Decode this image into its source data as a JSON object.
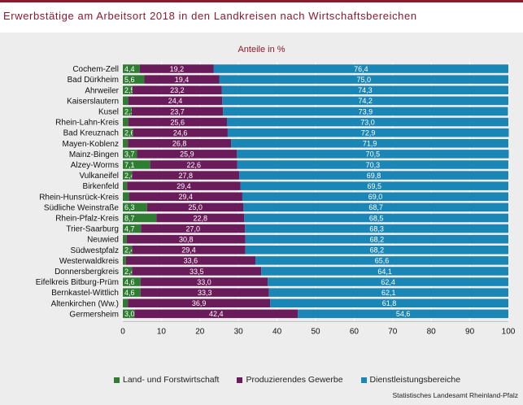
{
  "header": {
    "title": "Erwerbstätige am Arbeitsort 2018 in den Landkreisen nach Wirtschaftsbereichen"
  },
  "colors": {
    "accent": "#8b1a2e",
    "agriculture": "#2e7d32",
    "industry": "#6a1b5a",
    "services": "#1a86b5"
  },
  "source": "Statistisches Landesamt Rheinland-Pfalz",
  "chart_data": {
    "type": "bar",
    "orientation": "horizontal",
    "stacked": true,
    "title": "Erwerbstätige am Arbeitsort 2018 in den Landkreisen nach Wirtschaftsbereichen",
    "subtitle": "Anteile in %",
    "xlim": [
      0,
      100
    ],
    "xticks": [
      0,
      10,
      20,
      30,
      40,
      50,
      60,
      70,
      80,
      90,
      100
    ],
    "grid": true,
    "legend_position": "bottom",
    "categories": [
      "Cochem-Zell",
      "Bad Dürkheim",
      "Ahrweiler",
      "Kaiserslautern",
      "Kusel",
      "Rhein-Lahn-Kreis",
      "Bad Kreuznach",
      "Mayen-Koblenz",
      "Mainz-Bingen",
      "Alzey-Worms",
      "Vulkaneifel",
      "Birkenfeld",
      "Rhein-Hunsrück-Kreis",
      "Südliche Weinstraße",
      "Rhein-Pfalz-Kreis",
      "Trier-Saarburg",
      "Neuwied",
      "Südwestpfalz",
      "Westerwaldkreis",
      "Donnersbergkreis",
      "Eifelkreis Bitburg-Prüm",
      "Bernkastel-Wittlich",
      "Altenkirchen (Ww.)",
      "Germersheim"
    ],
    "series": [
      {
        "name": "Land- und Forstwirtschaft",
        "values": [
          4.4,
          5.6,
          2.5,
          1.4,
          2.3,
          1.4,
          2.6,
          1.3,
          3.7,
          7.1,
          2.4,
          1.1,
          1.6,
          6.3,
          8.7,
          4.7,
          1.0,
          2.4,
          0.8,
          2.4,
          4.6,
          4.6,
          1.3,
          3.0
        ],
        "labels": [
          "4,4",
          "5,6",
          "2,5",
          "",
          "2,3",
          "",
          "2,6",
          "",
          "3,7",
          "7,1",
          "2,4",
          "",
          "",
          "6,3",
          "8,7",
          "4,7",
          "",
          "2,4",
          "",
          "2,4",
          "4,6",
          "4,6",
          "",
          "3,0"
        ]
      },
      {
        "name": "Produzierendes Gewerbe",
        "values": [
          19.2,
          19.4,
          23.2,
          24.4,
          23.7,
          25.6,
          24.6,
          26.8,
          25.9,
          22.6,
          27.8,
          29.4,
          29.4,
          25.0,
          22.8,
          27.0,
          30.8,
          29.4,
          33.6,
          33.5,
          33.0,
          33.3,
          36.9,
          42.4
        ],
        "labels": [
          "19,2",
          "19,4",
          "23,2",
          "24,4",
          "23,7",
          "25,6",
          "24,6",
          "26,8",
          "25,9",
          "22,6",
          "27,8",
          "29,4",
          "29,4",
          "25,0",
          "22,8",
          "27,0",
          "30,8",
          "29,4",
          "33,6",
          "33,5",
          "33,0",
          "33,3",
          "36,9",
          "42,4"
        ]
      },
      {
        "name": "Dienstleistungsbereiche",
        "values": [
          76.4,
          75.0,
          74.3,
          74.2,
          73.9,
          73.0,
          72.9,
          71.9,
          70.5,
          70.3,
          69.8,
          69.5,
          69.0,
          68.7,
          68.5,
          68.3,
          68.2,
          68.2,
          65.6,
          64.1,
          62.4,
          62.1,
          61.8,
          54.6
        ],
        "labels": [
          "76,4",
          "75,0",
          "74,3",
          "74,2",
          "73,9",
          "73,0",
          "72,9",
          "71,9",
          "70,5",
          "70,3",
          "69,8",
          "69,5",
          "69,0",
          "68,7",
          "68,5",
          "68,3",
          "68,2",
          "68,2",
          "65,6",
          "64,1",
          "62,4",
          "62,1",
          "61,8",
          "54,6"
        ]
      }
    ]
  }
}
